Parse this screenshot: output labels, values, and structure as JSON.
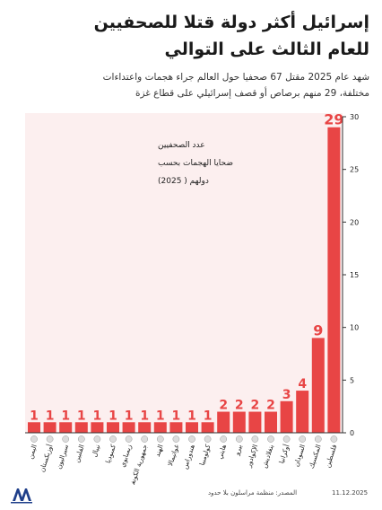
{
  "title_line1": "إسرائيل أكثر دولة قتلا للصحفيين",
  "title_line2": "للعام الثالث على التوالي",
  "subtitle_line1": "شهد عام 2025 مقتل 67 صحفيا حول العالم جراء هجمات واعتداءات",
  "subtitle_line2": "مختلفة، 29 منهم برصاص أو قصف إسرائيلي على قطاع غزة",
  "source": "المصدر: منظمة مراسلون بلا حدود",
  "date": "11.12.2025",
  "colors": {
    "bar": "#e84545",
    "panel": "#fcefef",
    "axis": "#333333",
    "label": "#e84545"
  },
  "chart_data": {
    "type": "bar",
    "annotation": [
      "عدد الصحفيين",
      "ضحايا الهجمات بحسب",
      "دولهم ( 2025)"
    ],
    "categories": [
      "اليمن",
      "أوزبكستان",
      "سيراليون",
      "الفلبين",
      "نيبال",
      "كمبوديا",
      "زيمبابوي",
      "جمهورية الكونغو الديمقراطية",
      "الهند",
      "غواتيمالا",
      "هندوراس",
      "كولومبيا",
      "هايتي",
      "بيرو",
      "الإكوادور",
      "بنغلاديش",
      "أوكرانيا",
      "السودان",
      "المكسيك",
      "فلسطين"
    ],
    "values": [
      1,
      1,
      1,
      1,
      1,
      1,
      1,
      1,
      1,
      1,
      1,
      1,
      2,
      2,
      2,
      2,
      3,
      4,
      9,
      29
    ],
    "yticks": [
      "0",
      "5",
      "10",
      "15",
      "20",
      "25",
      "30"
    ],
    "ylim": [
      0,
      30
    ],
    "axis_position": "right",
    "grid": false
  }
}
